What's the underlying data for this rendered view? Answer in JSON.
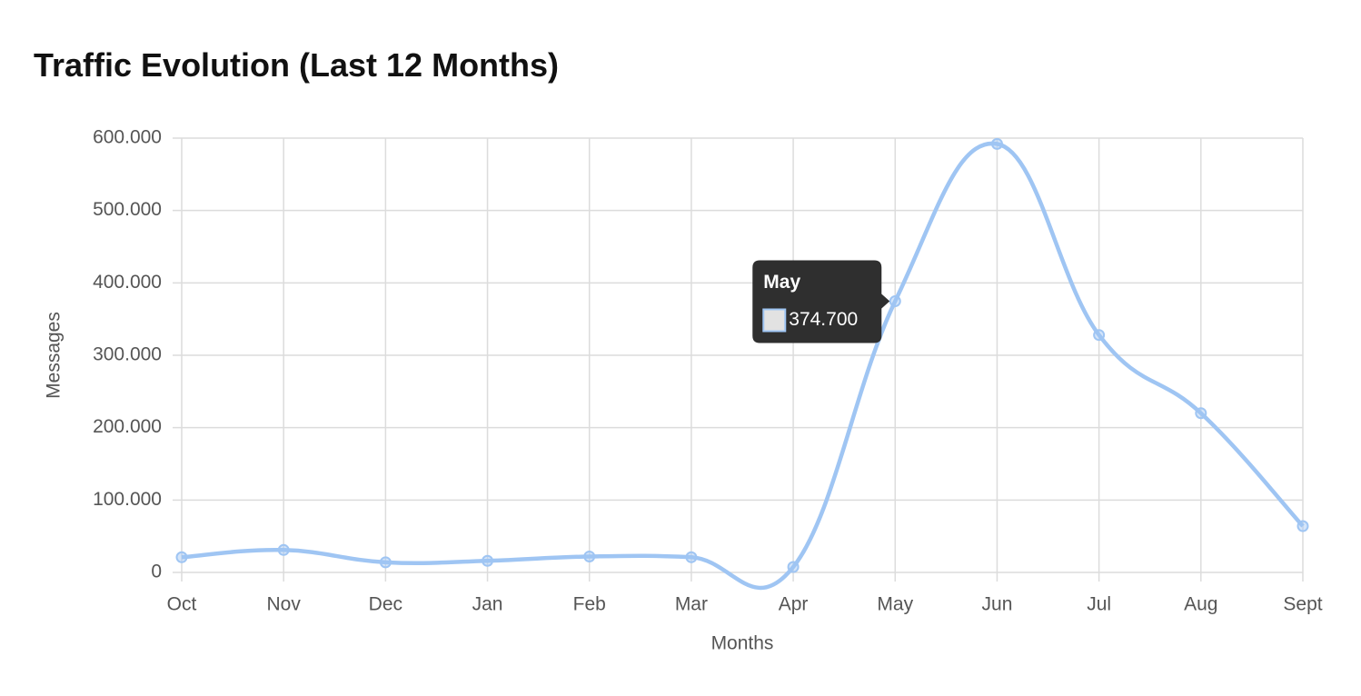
{
  "chart_data": {
    "type": "line",
    "title": "Traffic Evolution (Last 12 Months)",
    "x_label": "Months",
    "y_label": "Messages",
    "categories": [
      "Oct",
      "Nov",
      "Dec",
      "Jan",
      "Feb",
      "Mar",
      "Apr",
      "May",
      "Jun",
      "Jul",
      "Aug",
      "Sept"
    ],
    "series": [
      {
        "color": "#9fc5f3",
        "values": [
          21000,
          31000,
          14000,
          16000,
          22000,
          21000,
          7500,
          374700,
          592000,
          328000,
          220000,
          64000
        ],
        "value_labels": [
          null,
          null,
          null,
          null,
          null,
          null,
          null,
          "374.700",
          null,
          null,
          null,
          null
        ]
      }
    ],
    "ylim": [
      0,
      600000
    ],
    "yticks": [
      0,
      {
        "value": 100000,
        "label": "100.000"
      },
      {
        "value": 200000,
        "label": "200.000"
      },
      {
        "value": 300000,
        "label": "300.000"
      },
      {
        "value": 400000,
        "label": "400.000"
      },
      {
        "value": 500000,
        "label": "500.000"
      },
      {
        "value": 600000,
        "label": "600.000"
      }
    ],
    "grid": true
  }
}
